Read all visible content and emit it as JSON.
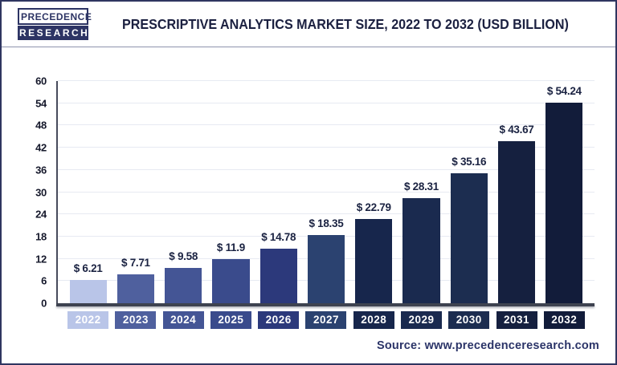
{
  "header": {
    "logo": {
      "line1": "PRECEDENCE",
      "line2": "RESEARCH"
    },
    "title": "PRESCRIPTIVE ANALYTICS MARKET SIZE, 2022 TO 2032 (USD BILLION)"
  },
  "chart_data": {
    "type": "bar",
    "title": "Prescriptive Analytics Market Size, 2022 to 2032 (USD Billion)",
    "unit": "USD Billion",
    "categories": [
      "2022",
      "2023",
      "2024",
      "2025",
      "2026",
      "2027",
      "2028",
      "2029",
      "2030",
      "2031",
      "2032"
    ],
    "values": [
      6.21,
      7.71,
      9.58,
      11.9,
      14.78,
      18.35,
      22.79,
      28.31,
      35.16,
      43.67,
      54.24
    ],
    "value_labels": [
      "$ 6.21",
      "$ 7.71",
      "$ 9.58",
      "$ 11.9",
      "$ 14.78",
      "$ 18.35",
      "$ 22.79",
      "$ 28.31",
      "$ 35.16",
      "$ 43.67",
      "$ 54.24"
    ],
    "ylim": [
      0,
      60
    ],
    "yticks": [
      0,
      6,
      12,
      18,
      24,
      30,
      36,
      42,
      48,
      54,
      60
    ],
    "grid": true,
    "legend_position": "none",
    "bar_colors": [
      "#b9c5e8",
      "#4f609e",
      "#445595",
      "#3a4b8c",
      "#2c397b",
      "#2b4270",
      "#17264c",
      "#1a2a4f",
      "#1c2d50",
      "#15203f",
      "#121c3a"
    ]
  },
  "footer": {
    "source": "Source: www.precedenceresearch.com"
  }
}
